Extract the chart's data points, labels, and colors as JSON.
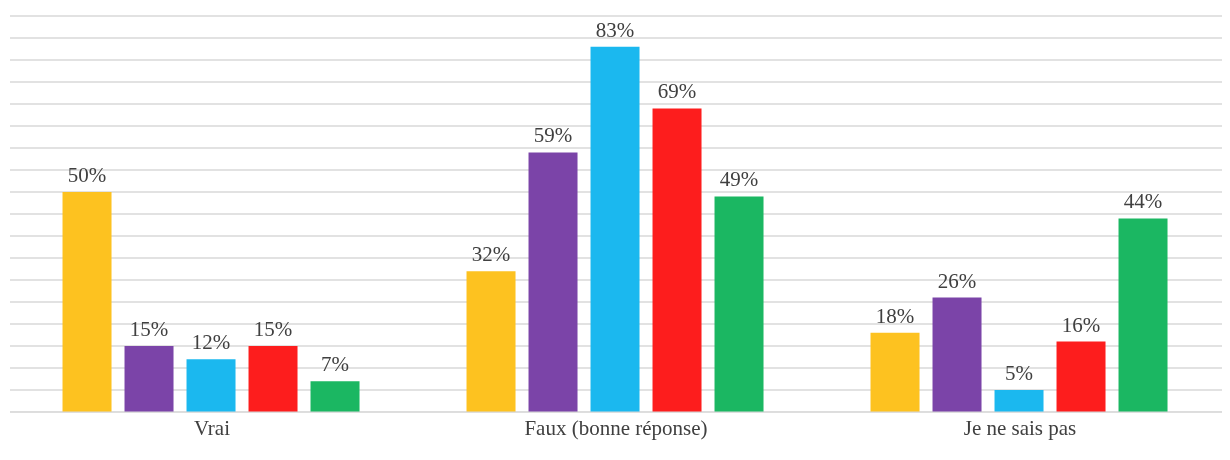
{
  "chart_data": {
    "type": "bar",
    "categories": [
      "Vrai",
      "Faux (bonne réponse)",
      "Je ne sais pas"
    ],
    "series": [
      {
        "color": "#fdc220",
        "values": [
          50,
          32,
          18
        ],
        "value_labels": [
          "50%",
          "32%",
          "18%"
        ]
      },
      {
        "color": "#7b44a8",
        "values": [
          15,
          59,
          26
        ],
        "value_labels": [
          "15%",
          "59%",
          "26%"
        ]
      },
      {
        "color": "#1bb8ef",
        "values": [
          12,
          83,
          5
        ],
        "value_labels": [
          "12%",
          "83%",
          "5%"
        ]
      },
      {
        "color": "#fd1d1d",
        "values": [
          15,
          69,
          16
        ],
        "value_labels": [
          "15%",
          "69%",
          "16%"
        ]
      },
      {
        "color": "#1bb762",
        "values": [
          7,
          49,
          44
        ],
        "value_labels": [
          "7%",
          "49%",
          "44%"
        ]
      }
    ],
    "ylim": [
      0,
      90
    ],
    "yticks": [
      {
        "value": 0,
        "label": null
      },
      {
        "value": 5,
        "label": null
      },
      {
        "value": 10,
        "label": null
      },
      {
        "value": 15,
        "label": null
      },
      {
        "value": 20,
        "label": null
      },
      {
        "value": 25,
        "label": null
      },
      {
        "value": 30,
        "label": null
      },
      {
        "value": 35,
        "label": null
      },
      {
        "value": 40,
        "label": null
      },
      {
        "value": 45,
        "label": null
      },
      {
        "value": 50,
        "label": null
      },
      {
        "value": 55,
        "label": null
      },
      {
        "value": 60,
        "label": null
      },
      {
        "value": 65,
        "label": null
      },
      {
        "value": 70,
        "label": null
      },
      {
        "value": 75,
        "label": null
      },
      {
        "value": 80,
        "label": null
      },
      {
        "value": 85,
        "label": null
      },
      {
        "value": 90,
        "label": null
      }
    ],
    "grid": "y",
    "tick_labels": "x",
    "legend": false
  }
}
